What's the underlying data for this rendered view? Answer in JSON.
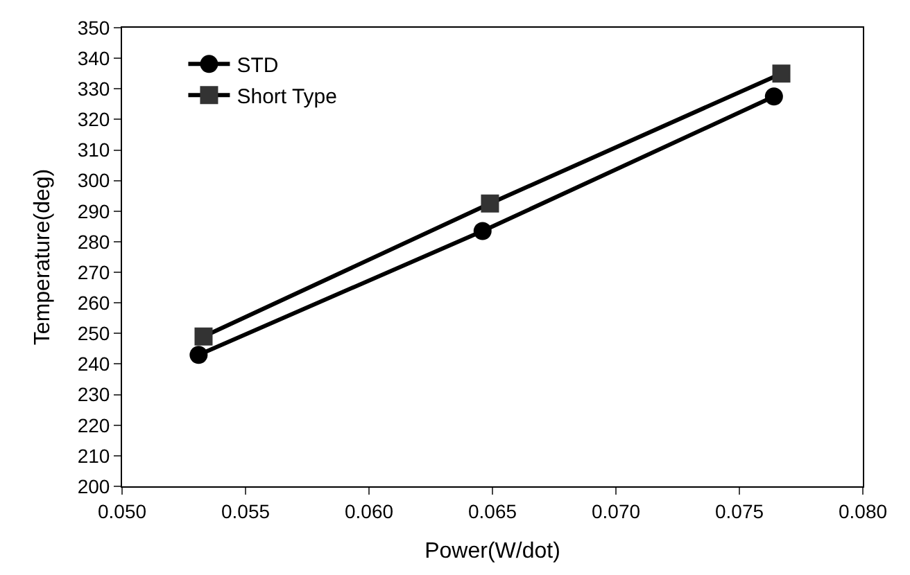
{
  "chart_data": {
    "type": "line",
    "xlabel": "Power(W/dot)",
    "ylabel": "Temperature(deg)",
    "xlim": [
      0.05,
      0.08
    ],
    "xticks": [
      {
        "value": 0.05,
        "label": "0.050"
      },
      {
        "value": 0.055,
        "label": "0.055"
      },
      {
        "value": 0.06,
        "label": "0.060"
      },
      {
        "value": 0.065,
        "label": "0.065"
      },
      {
        "value": 0.07,
        "label": "0.070"
      },
      {
        "value": 0.075,
        "label": "0.075"
      },
      {
        "value": 0.08,
        "label": "0.080"
      }
    ],
    "ylim": [
      200,
      350
    ],
    "yticks": [
      200,
      210,
      220,
      230,
      240,
      250,
      260,
      270,
      280,
      290,
      300,
      310,
      320,
      330,
      340,
      350
    ],
    "legend": "top left",
    "line_style": "solid",
    "series": [
      {
        "name": "STD",
        "color": "#000000",
        "marker": "circle",
        "x": [
          0.0531,
          0.0646,
          0.0764
        ],
        "values": [
          243,
          283.5,
          327.5
        ]
      },
      {
        "name": "Short Type",
        "color": "#333333",
        "marker": "square",
        "x": [
          0.0533,
          0.0649,
          0.0767
        ],
        "values": [
          249,
          292.5,
          335
        ]
      }
    ]
  }
}
